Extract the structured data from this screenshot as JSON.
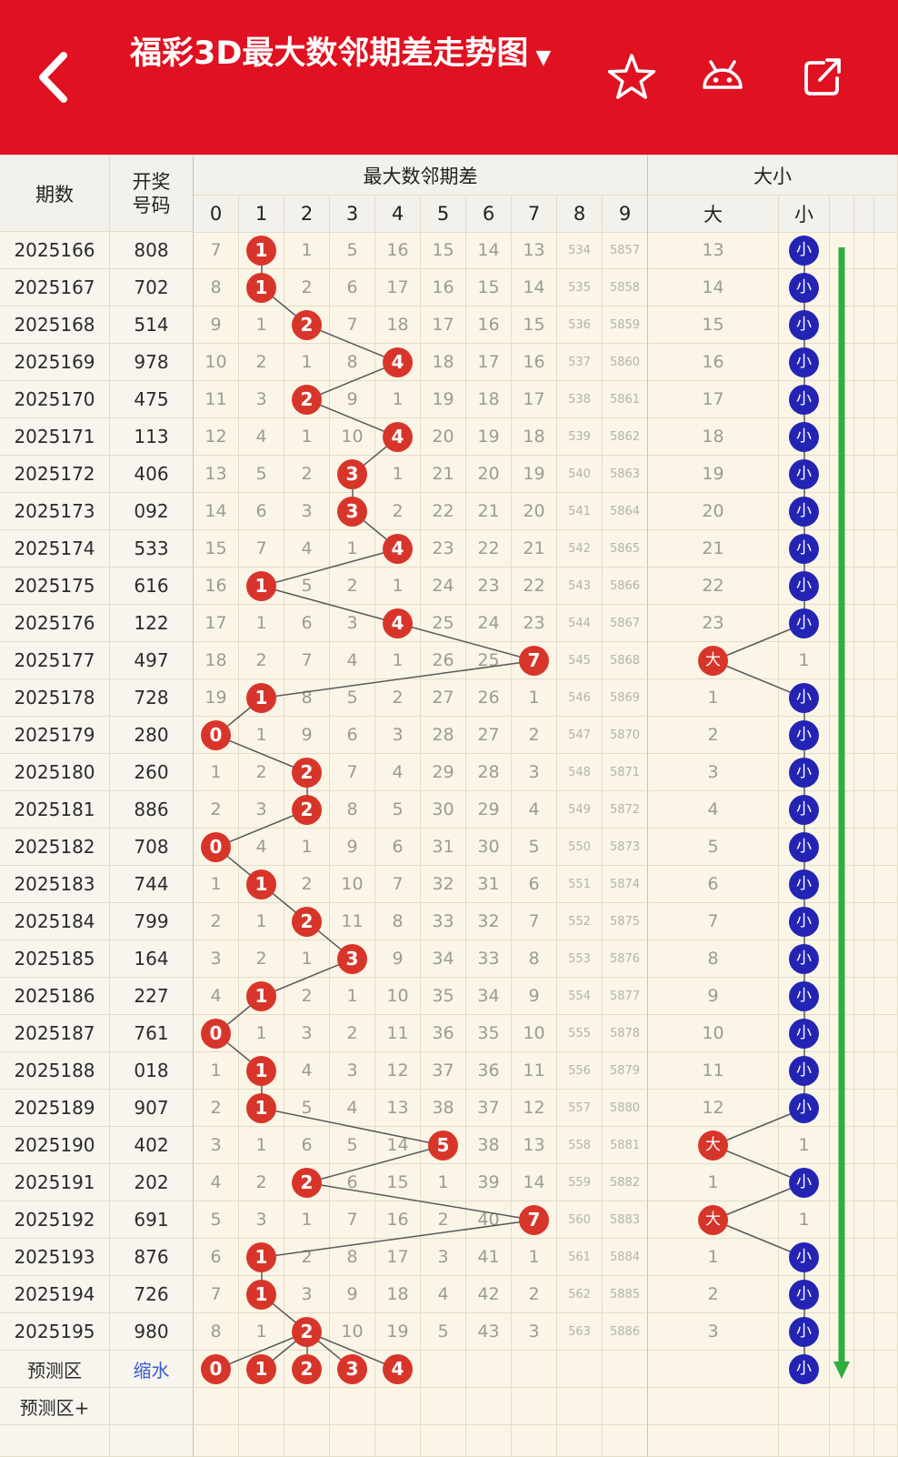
{
  "colors": {
    "app_bar_bg": "#e01120",
    "hit_circle_red": "#d8352a",
    "big_small_blue": "#2424b4",
    "trend_arrow_green": "#2fae3e",
    "link_blue": "#3c5bd8",
    "table_cream": "#faf5e6",
    "left_col_bg": "#f7f5ee",
    "header_bg": "#f3f1ec",
    "grid_line": "#e2dcc8",
    "line_color": "#5a5a5a"
  },
  "app_bar": {
    "back_icon": "back-chevron",
    "title": "福彩3D最大数邻期差走势图",
    "title_caret": "▼",
    "star_icon": "favorite-star",
    "android_icon": "android-robot",
    "share_icon": "share"
  },
  "table": {
    "headers": {
      "period": "期数",
      "number": "开奖号码",
      "diff": "最大数邻期差",
      "bigsmall": "大小",
      "digits": [
        "0",
        "1",
        "2",
        "3",
        "4",
        "5",
        "6",
        "7",
        "8",
        "9"
      ],
      "big": "大",
      "small": "小"
    },
    "rows": [
      {
        "p": "2025166",
        "n": "808",
        "c": [
          "7",
          "1",
          "1",
          "5",
          "16",
          "15",
          "14",
          "13",
          "534",
          "5857"
        ],
        "h": 1,
        "b": "S",
        "m": "13"
      },
      {
        "p": "2025167",
        "n": "702",
        "c": [
          "8",
          "1",
          "2",
          "6",
          "17",
          "16",
          "15",
          "14",
          "535",
          "5858"
        ],
        "h": 1,
        "b": "S",
        "m": "14"
      },
      {
        "p": "2025168",
        "n": "514",
        "c": [
          "9",
          "1",
          "2",
          "7",
          "18",
          "17",
          "16",
          "15",
          "536",
          "5859"
        ],
        "h": 2,
        "b": "S",
        "m": "15"
      },
      {
        "p": "2025169",
        "n": "978",
        "c": [
          "10",
          "2",
          "1",
          "8",
          "4",
          "18",
          "17",
          "16",
          "537",
          "5860"
        ],
        "h": 4,
        "b": "S",
        "m": "16"
      },
      {
        "p": "2025170",
        "n": "475",
        "c": [
          "11",
          "3",
          "2",
          "9",
          "1",
          "19",
          "18",
          "17",
          "538",
          "5861"
        ],
        "h": 2,
        "b": "S",
        "m": "17"
      },
      {
        "p": "2025171",
        "n": "113",
        "c": [
          "12",
          "4",
          "1",
          "10",
          "4",
          "20",
          "19",
          "18",
          "539",
          "5862"
        ],
        "h": 4,
        "b": "S",
        "m": "18"
      },
      {
        "p": "2025172",
        "n": "406",
        "c": [
          "13",
          "5",
          "2",
          "3",
          "1",
          "21",
          "20",
          "19",
          "540",
          "5863"
        ],
        "h": 3,
        "b": "S",
        "m": "19"
      },
      {
        "p": "2025173",
        "n": "092",
        "c": [
          "14",
          "6",
          "3",
          "3",
          "2",
          "22",
          "21",
          "20",
          "541",
          "5864"
        ],
        "h": 3,
        "b": "S",
        "m": "20"
      },
      {
        "p": "2025174",
        "n": "533",
        "c": [
          "15",
          "7",
          "4",
          "1",
          "4",
          "23",
          "22",
          "21",
          "542",
          "5865"
        ],
        "h": 4,
        "b": "S",
        "m": "21"
      },
      {
        "p": "2025175",
        "n": "616",
        "c": [
          "16",
          "1",
          "5",
          "2",
          "1",
          "24",
          "23",
          "22",
          "543",
          "5866"
        ],
        "h": 1,
        "b": "S",
        "m": "22"
      },
      {
        "p": "2025176",
        "n": "122",
        "c": [
          "17",
          "1",
          "6",
          "3",
          "4",
          "25",
          "24",
          "23",
          "544",
          "5867"
        ],
        "h": 4,
        "b": "S",
        "m": "23"
      },
      {
        "p": "2025177",
        "n": "497",
        "c": [
          "18",
          "2",
          "7",
          "4",
          "1",
          "26",
          "25",
          "7",
          "545",
          "5868"
        ],
        "h": 7,
        "b": "D",
        "m": "1"
      },
      {
        "p": "2025178",
        "n": "728",
        "c": [
          "19",
          "1",
          "8",
          "5",
          "2",
          "27",
          "26",
          "1",
          "546",
          "5869"
        ],
        "h": 1,
        "b": "S",
        "m": "1"
      },
      {
        "p": "2025179",
        "n": "280",
        "c": [
          "0",
          "1",
          "9",
          "6",
          "3",
          "28",
          "27",
          "2",
          "547",
          "5870"
        ],
        "h": 0,
        "b": "S",
        "m": "2"
      },
      {
        "p": "2025180",
        "n": "260",
        "c": [
          "1",
          "2",
          "2",
          "7",
          "4",
          "29",
          "28",
          "3",
          "548",
          "5871"
        ],
        "h": 2,
        "b": "S",
        "m": "3"
      },
      {
        "p": "2025181",
        "n": "886",
        "c": [
          "2",
          "3",
          "2",
          "8",
          "5",
          "30",
          "29",
          "4",
          "549",
          "5872"
        ],
        "h": 2,
        "b": "S",
        "m": "4"
      },
      {
        "p": "2025182",
        "n": "708",
        "c": [
          "0",
          "4",
          "1",
          "9",
          "6",
          "31",
          "30",
          "5",
          "550",
          "5873"
        ],
        "h": 0,
        "b": "S",
        "m": "5"
      },
      {
        "p": "2025183",
        "n": "744",
        "c": [
          "1",
          "1",
          "2",
          "10",
          "7",
          "32",
          "31",
          "6",
          "551",
          "5874"
        ],
        "h": 1,
        "b": "S",
        "m": "6"
      },
      {
        "p": "2025184",
        "n": "799",
        "c": [
          "2",
          "1",
          "2",
          "11",
          "8",
          "33",
          "32",
          "7",
          "552",
          "5875"
        ],
        "h": 2,
        "b": "S",
        "m": "7"
      },
      {
        "p": "2025185",
        "n": "164",
        "c": [
          "3",
          "2",
          "1",
          "3",
          "9",
          "34",
          "33",
          "8",
          "553",
          "5876"
        ],
        "h": 3,
        "b": "S",
        "m": "8"
      },
      {
        "p": "2025186",
        "n": "227",
        "c": [
          "4",
          "1",
          "2",
          "1",
          "10",
          "35",
          "34",
          "9",
          "554",
          "5877"
        ],
        "h": 1,
        "b": "S",
        "m": "9"
      },
      {
        "p": "2025187",
        "n": "761",
        "c": [
          "0",
          "1",
          "3",
          "2",
          "11",
          "36",
          "35",
          "10",
          "555",
          "5878"
        ],
        "h": 0,
        "b": "S",
        "m": "10"
      },
      {
        "p": "2025188",
        "n": "018",
        "c": [
          "1",
          "1",
          "4",
          "3",
          "12",
          "37",
          "36",
          "11",
          "556",
          "5879"
        ],
        "h": 1,
        "b": "S",
        "m": "11"
      },
      {
        "p": "2025189",
        "n": "907",
        "c": [
          "2",
          "1",
          "5",
          "4",
          "13",
          "38",
          "37",
          "12",
          "557",
          "5880"
        ],
        "h": 1,
        "b": "S",
        "m": "12"
      },
      {
        "p": "2025190",
        "n": "402",
        "c": [
          "3",
          "1",
          "6",
          "5",
          "14",
          "5",
          "38",
          "13",
          "558",
          "5881"
        ],
        "h": 5,
        "b": "D",
        "m": "1"
      },
      {
        "p": "2025191",
        "n": "202",
        "c": [
          "4",
          "2",
          "2",
          "6",
          "15",
          "1",
          "39",
          "14",
          "559",
          "5882"
        ],
        "h": 2,
        "b": "S",
        "m": "1"
      },
      {
        "p": "2025192",
        "n": "691",
        "c": [
          "5",
          "3",
          "1",
          "7",
          "16",
          "2",
          "40",
          "7",
          "560",
          "5883"
        ],
        "h": 7,
        "b": "D",
        "m": "1"
      },
      {
        "p": "2025193",
        "n": "876",
        "c": [
          "6",
          "1",
          "2",
          "8",
          "17",
          "3",
          "41",
          "1",
          "561",
          "5884"
        ],
        "h": 1,
        "b": "S",
        "m": "1"
      },
      {
        "p": "2025194",
        "n": "726",
        "c": [
          "7",
          "1",
          "3",
          "9",
          "18",
          "4",
          "42",
          "2",
          "562",
          "5885"
        ],
        "h": 1,
        "b": "S",
        "m": "2"
      },
      {
        "p": "2025195",
        "n": "980",
        "c": [
          "8",
          "1",
          "2",
          "10",
          "19",
          "5",
          "43",
          "3",
          "563",
          "5886"
        ],
        "h": 2,
        "b": "S",
        "m": "3"
      }
    ],
    "predict": {
      "period": "预测区",
      "link": "缩水",
      "hits": [
        0,
        1,
        2,
        3,
        4
      ],
      "b": "S"
    },
    "predict_plus": {
      "period": "预测区+"
    }
  }
}
